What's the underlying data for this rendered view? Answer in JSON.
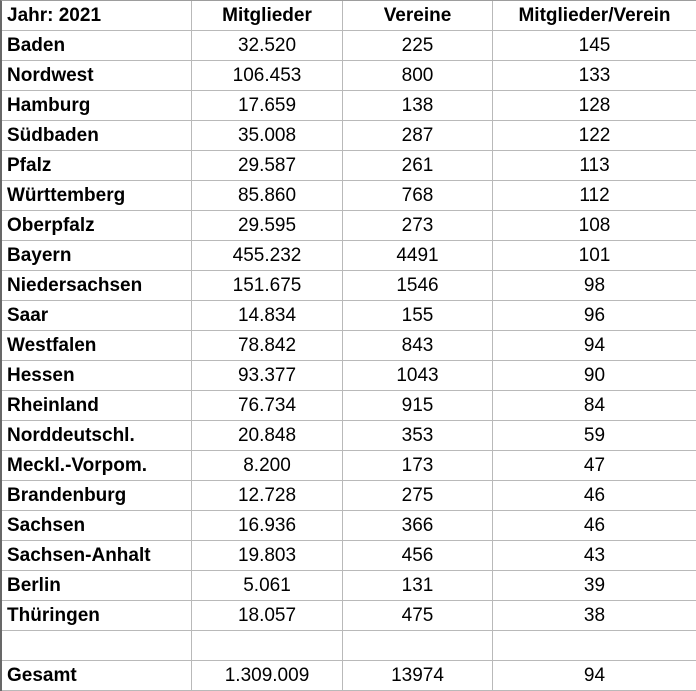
{
  "table": {
    "header": {
      "year_label": "Jahr: 2021",
      "mitglieder": "Mitglieder",
      "vereine": "Vereine",
      "ratio": "Mitglieder/Verein"
    },
    "rows": [
      {
        "region": "Baden",
        "mitglieder": "32.520",
        "vereine": "225",
        "ratio": "145"
      },
      {
        "region": "Nordwest",
        "mitglieder": "106.453",
        "vereine": "800",
        "ratio": "133"
      },
      {
        "region": "Hamburg",
        "mitglieder": "17.659",
        "vereine": "138",
        "ratio": "128"
      },
      {
        "region": "Südbaden",
        "mitglieder": "35.008",
        "vereine": "287",
        "ratio": "122"
      },
      {
        "region": "Pfalz",
        "mitglieder": "29.587",
        "vereine": "261",
        "ratio": "113"
      },
      {
        "region": "Württemberg",
        "mitglieder": "85.860",
        "vereine": "768",
        "ratio": "112"
      },
      {
        "region": "Oberpfalz",
        "mitglieder": "29.595",
        "vereine": "273",
        "ratio": "108"
      },
      {
        "region": "Bayern",
        "mitglieder": "455.232",
        "vereine": "4491",
        "ratio": "101"
      },
      {
        "region": "Niedersachsen",
        "mitglieder": "151.675",
        "vereine": "1546",
        "ratio": "98"
      },
      {
        "region": "Saar",
        "mitglieder": "14.834",
        "vereine": "155",
        "ratio": "96"
      },
      {
        "region": "Westfalen",
        "mitglieder": "78.842",
        "vereine": "843",
        "ratio": "94"
      },
      {
        "region": "Hessen",
        "mitglieder": "93.377",
        "vereine": "1043",
        "ratio": "90"
      },
      {
        "region": "Rheinland",
        "mitglieder": "76.734",
        "vereine": "915",
        "ratio": "84"
      },
      {
        "region": "Norddeutschl.",
        "mitglieder": "20.848",
        "vereine": "353",
        "ratio": "59"
      },
      {
        "region": "Meckl.-Vorpom.",
        "mitglieder": "8.200",
        "vereine": "173",
        "ratio": "47"
      },
      {
        "region": "Brandenburg",
        "mitglieder": "12.728",
        "vereine": "275",
        "ratio": "46"
      },
      {
        "region": "Sachsen",
        "mitglieder": "16.936",
        "vereine": "366",
        "ratio": "46"
      },
      {
        "region": "Sachsen-Anhalt",
        "mitglieder": "19.803",
        "vereine": "456",
        "ratio": "43"
      },
      {
        "region": "Berlin",
        "mitglieder": "5.061",
        "vereine": "131",
        "ratio": "39"
      },
      {
        "region": "Thüringen",
        "mitglieder": "18.057",
        "vereine": "475",
        "ratio": "38"
      },
      {
        "region": "",
        "mitglieder": "",
        "vereine": "",
        "ratio": ""
      }
    ],
    "total": {
      "region": "Gesamt",
      "mitglieder": "1.309.009",
      "vereine": "13974",
      "ratio": "94"
    }
  },
  "colors": {
    "text": "#000000",
    "background": "#ffffff",
    "gridline": "#b9b9b9",
    "outer_top": "#9d9d9d",
    "outer_left": "#686868"
  }
}
